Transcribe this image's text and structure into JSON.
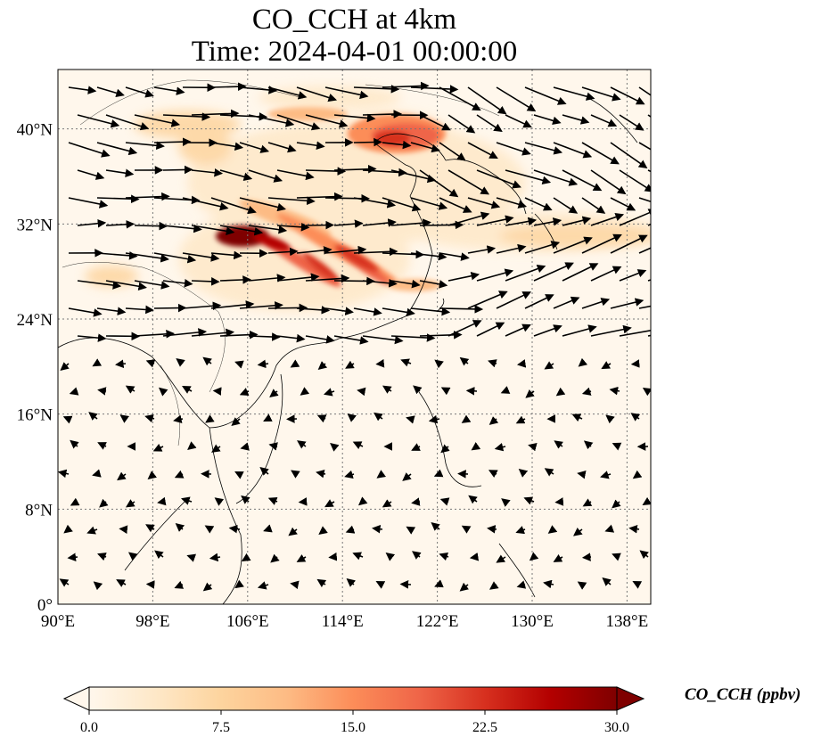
{
  "title_line1": "CO_CCH at 4km",
  "title_line2": "Time: 2024-04-01 00:00:00",
  "map": {
    "lon_range": [
      90,
      140
    ],
    "lat_range": [
      0,
      45
    ],
    "lon_ticks": [
      {
        "value": 90,
        "label": "90°E"
      },
      {
        "value": 98,
        "label": "98°E"
      },
      {
        "value": 106,
        "label": "106°E"
      },
      {
        "value": 114,
        "label": "114°E"
      },
      {
        "value": 122,
        "label": "122°E"
      },
      {
        "value": 130,
        "label": "130°E"
      },
      {
        "value": 138,
        "label": "138°E"
      }
    ],
    "lat_ticks": [
      {
        "value": 0,
        "label": "0°"
      },
      {
        "value": 8,
        "label": "8°N"
      },
      {
        "value": 16,
        "label": "16°N"
      },
      {
        "value": 24,
        "label": "24°N"
      },
      {
        "value": 32,
        "label": "32°N"
      },
      {
        "value": 40,
        "label": "40°N"
      }
    ],
    "gridlines": true,
    "colormap": "OrRd"
  },
  "colorbar": {
    "label": "CO_CCH (ppbv)",
    "min": 0,
    "max": 30,
    "extend": "both",
    "ticks": [
      {
        "value": 0,
        "label": "0.0"
      },
      {
        "value": 7.5,
        "label": "7.5"
      },
      {
        "value": 15,
        "label": "15.0"
      },
      {
        "value": 22.5,
        "label": "22.5"
      },
      {
        "value": 30,
        "label": "30.0"
      }
    ],
    "colors": [
      "#fff7ec",
      "#fee8c8",
      "#fdd49e",
      "#fdbb84",
      "#fc8d59",
      "#ef6548",
      "#d7301f",
      "#b30000",
      "#7f0000"
    ]
  }
}
